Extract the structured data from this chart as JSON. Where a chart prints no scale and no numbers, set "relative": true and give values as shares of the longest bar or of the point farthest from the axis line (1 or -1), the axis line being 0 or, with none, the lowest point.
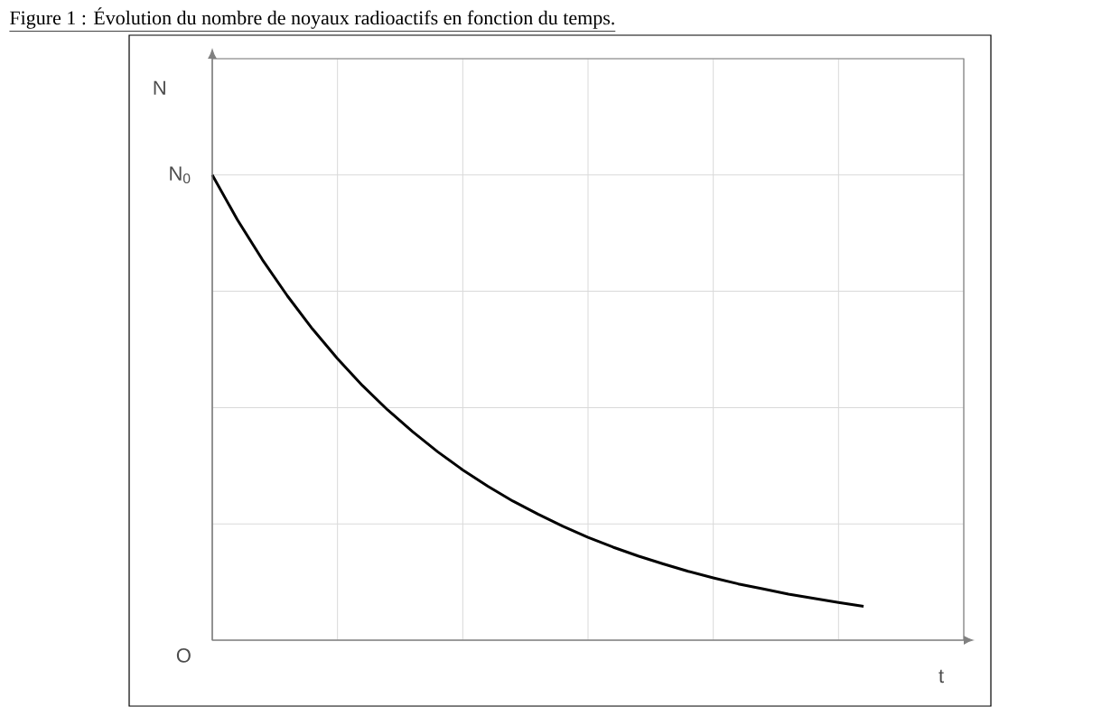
{
  "chart_data": {
    "type": "line",
    "relative": true,
    "title": "Figure 1 : Évolution du nombre de noyaux radioactifs en fonction du temps.",
    "xlabel": "t",
    "ylabel": "N",
    "grid": true,
    "color": "#000000",
    "categories": [
      null,
      null,
      null,
      null,
      null,
      null,
      null,
      null,
      null,
      null,
      null,
      null,
      null,
      null,
      null,
      null,
      null,
      null,
      null,
      null,
      null,
      null,
      null,
      null,
      null,
      null,
      null
    ],
    "values": [
      1.0,
      0.904,
      0.818,
      0.74,
      0.669,
      0.605,
      0.547,
      0.495,
      0.448,
      0.405,
      0.366,
      0.331,
      0.299,
      0.271,
      0.245,
      0.221,
      0.2,
      0.181,
      0.164,
      0.148,
      0.134,
      0.121,
      0.11,
      0.099,
      0.09,
      0.081,
      0.073
    ],
    "annotations": [
      "O",
      "N$_{0}$"
    ]
  }
}
